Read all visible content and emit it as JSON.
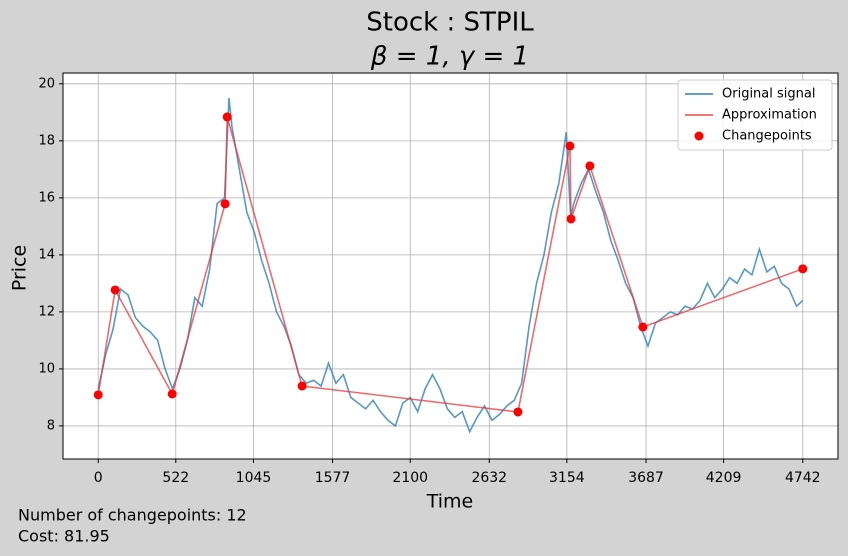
{
  "chart_data": {
    "type": "line",
    "title": "Stock : STPIL",
    "subtitle": "β = 1, γ = 1",
    "x_label": "Time",
    "y_label": "Price",
    "annotations": [
      "Number of changepoints: 12",
      "Cost: 81.95"
    ],
    "xlim": [
      -237.1,
      4979.1
    ],
    "ylim": [
      6.84,
      20.38
    ],
    "xticks": [
      0,
      522,
      1045,
      1577,
      2100,
      2632,
      3154,
      3687,
      4209,
      4742
    ],
    "yticks": [
      8,
      10,
      12,
      14,
      16,
      18,
      20
    ],
    "grid": true,
    "legend": "upper right",
    "series": [
      {
        "name": "Original signal",
        "color": "#1f77b4",
        "kind": "line",
        "x": [
          0,
          50,
          100,
          150,
          200,
          250,
          300,
          350,
          400,
          450,
          500,
          550,
          600,
          650,
          700,
          750,
          800,
          850,
          880,
          900,
          950,
          1000,
          1050,
          1100,
          1150,
          1200,
          1250,
          1300,
          1350,
          1400,
          1450,
          1500,
          1550,
          1600,
          1650,
          1700,
          1750,
          1800,
          1850,
          1900,
          1950,
          2000,
          2050,
          2100,
          2150,
          2200,
          2250,
          2300,
          2350,
          2400,
          2450,
          2500,
          2550,
          2600,
          2650,
          2700,
          2750,
          2800,
          2850,
          2900,
          2950,
          3000,
          3050,
          3100,
          3150,
          3180,
          3200,
          3250,
          3300,
          3350,
          3400,
          3450,
          3500,
          3550,
          3600,
          3650,
          3700,
          3750,
          3800,
          3850,
          3900,
          3950,
          4000,
          4050,
          4100,
          4150,
          4200,
          4250,
          4300,
          4350,
          4400,
          4450,
          4500,
          4550,
          4600,
          4650,
          4700,
          4742
        ],
        "values": [
          9.3,
          10.5,
          11.4,
          12.8,
          12.6,
          11.8,
          11.5,
          11.3,
          11.0,
          10.0,
          9.3,
          10.0,
          11.0,
          12.5,
          12.2,
          13.5,
          15.8,
          16.0,
          19.5,
          18.5,
          17.0,
          15.5,
          14.8,
          13.8,
          13.0,
          12.0,
          11.5,
          10.8,
          9.8,
          9.5,
          9.6,
          9.4,
          10.2,
          9.5,
          9.8,
          9.0,
          8.8,
          8.6,
          8.9,
          8.5,
          8.2,
          8.0,
          8.8,
          9.0,
          8.5,
          9.3,
          9.8,
          9.3,
          8.6,
          8.3,
          8.5,
          7.8,
          8.3,
          8.7,
          8.2,
          8.4,
          8.7,
          8.9,
          9.5,
          11.5,
          13.0,
          14.0,
          15.5,
          16.5,
          18.3,
          15.3,
          15.8,
          16.5,
          17.0,
          16.2,
          15.5,
          14.5,
          13.8,
          13.0,
          12.5,
          11.5,
          10.8,
          11.6,
          11.8,
          12.0,
          11.9,
          12.2,
          12.1,
          12.4,
          13.0,
          12.5,
          12.8,
          13.2,
          13.0,
          13.5,
          13.3,
          14.2,
          13.4,
          13.6,
          13.0,
          12.8,
          12.2,
          12.4
        ]
      },
      {
        "name": "Approximation",
        "color": "#e8393b",
        "kind": "line",
        "x": [
          0,
          114,
          498,
          854,
          868,
          1372,
          2825,
          3175,
          3182,
          3309,
          3666,
          4742
        ],
        "values": [
          9.09,
          12.77,
          9.12,
          15.79,
          18.84,
          9.4,
          8.49,
          17.82,
          15.26,
          17.12,
          11.47,
          13.51
        ]
      },
      {
        "name": "Changepoints",
        "color": "#ff0000",
        "kind": "scatter",
        "x": [
          0,
          114,
          498,
          854,
          868,
          1372,
          2825,
          3175,
          3182,
          3309,
          3666,
          4742
        ],
        "values": [
          9.09,
          12.77,
          9.12,
          15.79,
          18.84,
          9.4,
          8.49,
          17.82,
          15.26,
          17.12,
          11.47,
          13.51
        ]
      }
    ]
  }
}
